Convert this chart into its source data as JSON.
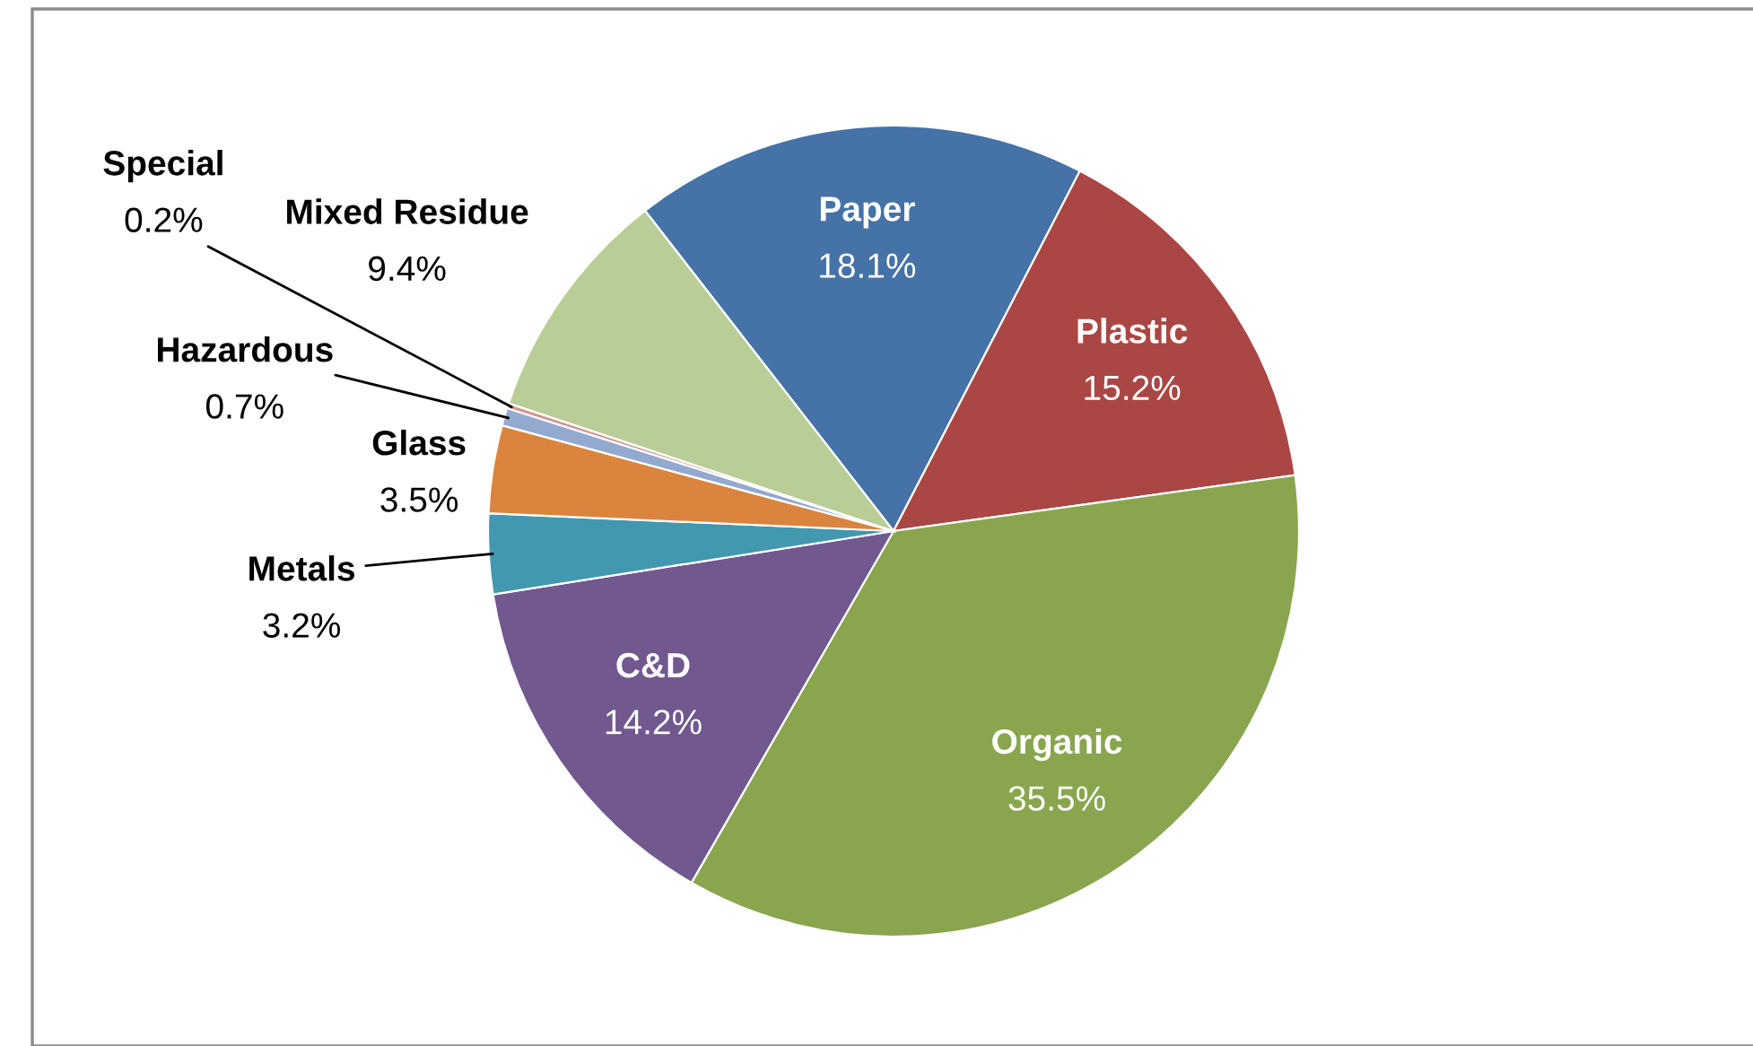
{
  "chart_data": {
    "type": "pie",
    "categories": [
      "Paper",
      "Plastic",
      "Organic",
      "C&D",
      "Metals",
      "Glass",
      "Hazardous",
      "Special",
      "Mixed Residue"
    ],
    "values": [
      18.1,
      15.2,
      35.5,
      14.2,
      3.2,
      3.5,
      0.7,
      0.2,
      9.4
    ],
    "colors": [
      "#4572a7",
      "#aa4643",
      "#89a54e",
      "#71588f",
      "#4198af",
      "#db843d",
      "#93a9cf",
      "#d19392",
      "#b9cd96"
    ],
    "value_labels": [
      "18.1%",
      "15.2%",
      "35.5%",
      "14.2%",
      "3.2%",
      "3.5%",
      "0.7%",
      "0.2%",
      "9.4%"
    ],
    "legend": false
  }
}
